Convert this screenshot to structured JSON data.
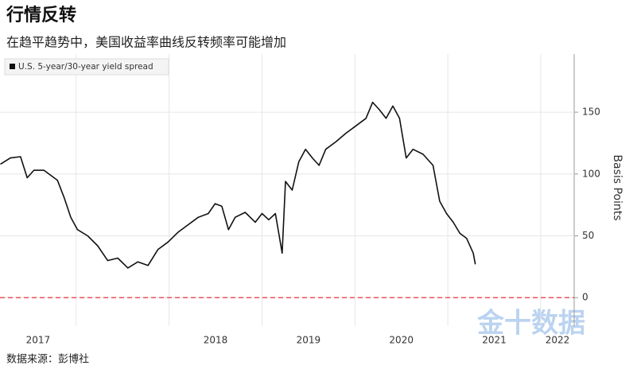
{
  "chart_data": {
    "type": "line",
    "title": "行情反转",
    "subtitle": "在趋平趋势中，美国收益率曲线反转频率可能增加",
    "source": "数据来源：彭博社",
    "watermark": "金十数据",
    "y_axis_label": "Basis Points",
    "x": [
      2016.184,
      2016.292,
      2016.401,
      2016.473,
      2016.545,
      2016.653,
      2016.798,
      2016.87,
      2016.942,
      2017.014,
      2017.123,
      2017.231,
      2017.339,
      2017.448,
      2017.556,
      2017.664,
      2017.773,
      2017.881,
      2017.989,
      2018.097,
      2018.206,
      2018.314,
      2018.422,
      2018.495,
      2018.567,
      2018.639,
      2018.711,
      2018.819,
      2018.928,
      2019.0,
      2019.072,
      2019.144,
      2019.217,
      2019.253,
      2019.325,
      2019.397,
      2019.469,
      2019.542,
      2019.614,
      2019.686,
      2019.794,
      2019.903,
      2020.011,
      2020.119,
      2020.191,
      2020.264,
      2020.336,
      2020.408,
      2020.48,
      2020.552,
      2020.625,
      2020.733,
      2020.841,
      2020.913,
      2020.986,
      2021.058,
      2021.13,
      2021.202,
      2021.274,
      2021.296
    ],
    "series": [
      {
        "name": "U.S. 5-year/30-year yield spread",
        "color": "#111111",
        "values": [
          108,
          113,
          114,
          97,
          103,
          103,
          95,
          81,
          65,
          55,
          50,
          42,
          30,
          32,
          24,
          29,
          26,
          39,
          45,
          53,
          59,
          65,
          68,
          76,
          74,
          55,
          65,
          69,
          61,
          68,
          63,
          68,
          36,
          94,
          87,
          110,
          120,
          113,
          107,
          120,
          126,
          133,
          139,
          145,
          158,
          152,
          145,
          155,
          145,
          113,
          120,
          116,
          107,
          78,
          68,
          61,
          52,
          48,
          36,
          27
        ]
      }
    ],
    "xlim": [
      2016.18,
      2022.36
    ],
    "xticks": [
      2017,
      2018,
      2019,
      2020,
      2021,
      2022
    ],
    "ylim": [
      -23,
      197
    ],
    "yticks": [
      0,
      50,
      100,
      150
    ],
    "grid": true,
    "reference_line": {
      "value": 0,
      "color": "#e8545a"
    }
  }
}
